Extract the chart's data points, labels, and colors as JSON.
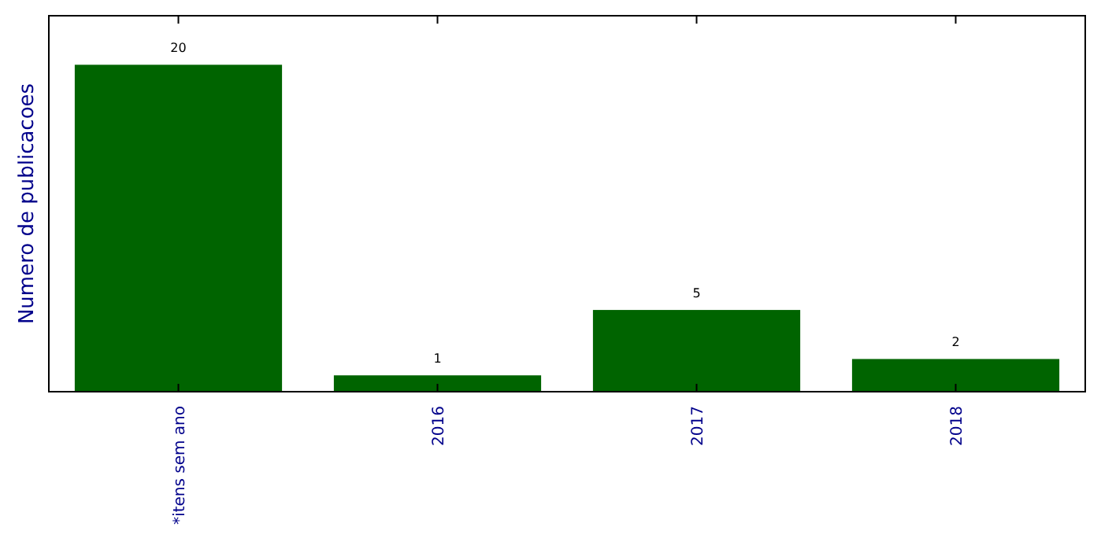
{
  "chart_data": {
    "type": "bar",
    "ylabel": "Numero de publicacoes",
    "categories": [
      "*itens sem ano",
      "2016",
      "2017",
      "2018"
    ],
    "values": [
      20,
      1,
      5,
      2
    ],
    "color": "#006400",
    "ylim": [
      0,
      23
    ],
    "data_labels": true,
    "tick_labels": "x"
  }
}
